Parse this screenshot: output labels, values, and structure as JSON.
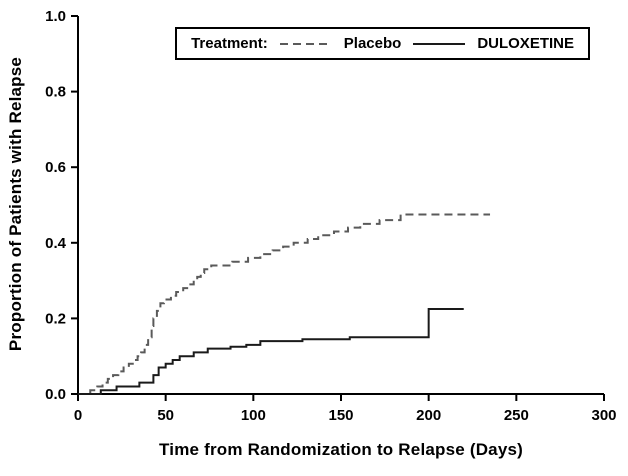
{
  "chart_data": {
    "type": "line",
    "subtype": "kaplan-meier-step",
    "title": "",
    "xlabel": "Time from Randomization to Relapse (Days)",
    "ylabel": "Proportion of Patients with Relapse",
    "xlim": [
      0,
      300
    ],
    "ylim": [
      0.0,
      1.0
    ],
    "x_ticks": [
      0,
      50,
      100,
      150,
      200,
      250,
      300
    ],
    "y_ticks": [
      0.0,
      0.2,
      0.4,
      0.6,
      0.8,
      1.0
    ],
    "grid": false,
    "axis_color": "#000000",
    "legend": {
      "title": "Treatment:",
      "position": "top-right-inside",
      "entries": [
        {
          "name": "Placebo",
          "style": "dashed",
          "color": "#5a5a5a"
        },
        {
          "name": "DULOXETINE",
          "style": "solid",
          "color": "#1a1a1a"
        }
      ]
    },
    "series": [
      {
        "name": "Placebo",
        "style": "dashed",
        "color": "#5a5a5a",
        "step": true,
        "points": [
          [
            0,
            0.0
          ],
          [
            7,
            0.01
          ],
          [
            11,
            0.02
          ],
          [
            14,
            0.03
          ],
          [
            17,
            0.04
          ],
          [
            20,
            0.05
          ],
          [
            23,
            0.06
          ],
          [
            26,
            0.07
          ],
          [
            29,
            0.08
          ],
          [
            32,
            0.09
          ],
          [
            34,
            0.1
          ],
          [
            36,
            0.11
          ],
          [
            38,
            0.13
          ],
          [
            40,
            0.15
          ],
          [
            42,
            0.18
          ],
          [
            43,
            0.2
          ],
          [
            45,
            0.22
          ],
          [
            47,
            0.24
          ],
          [
            49,
            0.25
          ],
          [
            53,
            0.26
          ],
          [
            56,
            0.27
          ],
          [
            60,
            0.28
          ],
          [
            63,
            0.29
          ],
          [
            66,
            0.3
          ],
          [
            68,
            0.31
          ],
          [
            70,
            0.32
          ],
          [
            72,
            0.33
          ],
          [
            76,
            0.34
          ],
          [
            88,
            0.35
          ],
          [
            97,
            0.36
          ],
          [
            104,
            0.37
          ],
          [
            111,
            0.38
          ],
          [
            117,
            0.39
          ],
          [
            123,
            0.4
          ],
          [
            131,
            0.41
          ],
          [
            137,
            0.42
          ],
          [
            146,
            0.43
          ],
          [
            154,
            0.44
          ],
          [
            161,
            0.45
          ],
          [
            172,
            0.46
          ],
          [
            184,
            0.475
          ],
          [
            235,
            0.475
          ]
        ]
      },
      {
        "name": "DULOXETINE",
        "style": "solid",
        "color": "#1a1a1a",
        "step": true,
        "points": [
          [
            0,
            0.0
          ],
          [
            13,
            0.01
          ],
          [
            22,
            0.02
          ],
          [
            35,
            0.03
          ],
          [
            43,
            0.05
          ],
          [
            46,
            0.07
          ],
          [
            50,
            0.08
          ],
          [
            54,
            0.09
          ],
          [
            58,
            0.1
          ],
          [
            66,
            0.11
          ],
          [
            74,
            0.12
          ],
          [
            87,
            0.125
          ],
          [
            96,
            0.13
          ],
          [
            104,
            0.14
          ],
          [
            128,
            0.145
          ],
          [
            155,
            0.15
          ],
          [
            200,
            0.225
          ],
          [
            220,
            0.225
          ]
        ]
      }
    ]
  }
}
